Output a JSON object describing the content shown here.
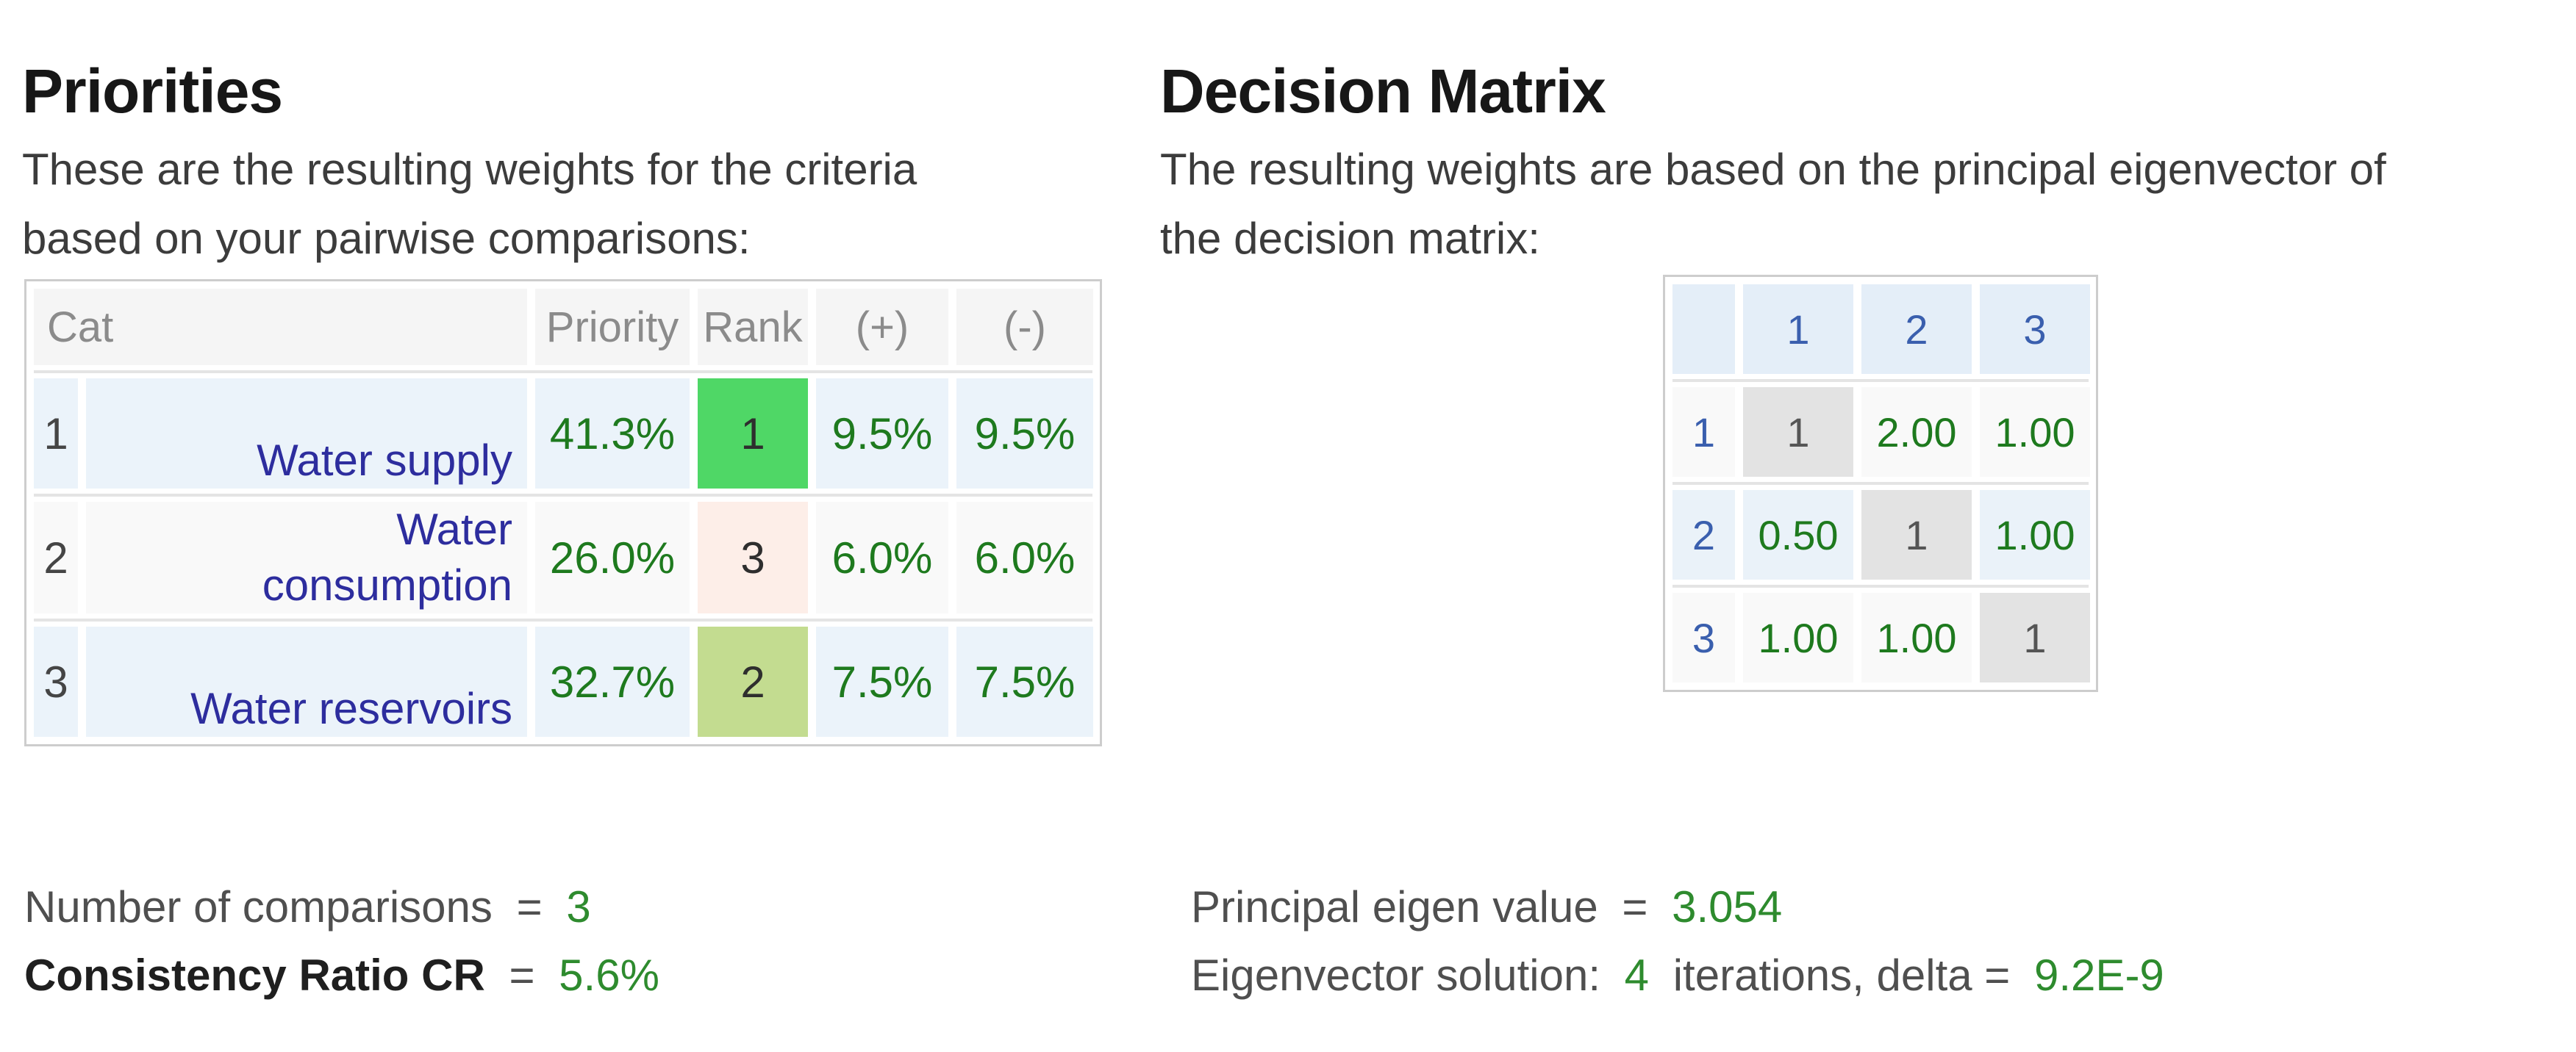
{
  "colors": {
    "accent_green_values": "#1e7a1e",
    "accent_green_stats": "#2e8b2e",
    "category_link_blue": "#2d2d9e",
    "matrix_index_blue": "#3a5fae",
    "rank_1_bg": "#4fd766",
    "rank_2_bg": "#c3dc90",
    "rank_3_bg": "#fdeee8",
    "diagonal_bg": "#e3e3e3",
    "row_blue_bg": "#ebf3fa",
    "header_gray_text": "#8b8b8b"
  },
  "left": {
    "title": "Priorities",
    "intro_lines": [
      "These are the resulting weights for the criteria",
      "based on your pairwise comparisons:"
    ],
    "table": {
      "headers": {
        "cat": "Cat",
        "priority": "Priority",
        "rank": "Rank",
        "plus": "(+)",
        "minus": "(-)"
      },
      "rows": [
        {
          "index": "1",
          "name": "Water supply",
          "priority": "41.3%",
          "rank": "1",
          "plus": "9.5%",
          "minus": "9.5%"
        },
        {
          "index": "2",
          "name": "Water",
          "name_line2": "consumption",
          "priority": "26.0%",
          "rank": "3",
          "plus": "6.0%",
          "minus": "6.0%"
        },
        {
          "index": "3",
          "name": "Water reservoirs",
          "priority": "32.7%",
          "rank": "2",
          "plus": "7.5%",
          "minus": "7.5%"
        }
      ]
    },
    "stats": {
      "comparisons_label": "Number of comparisons",
      "comparisons_eq": "=",
      "comparisons_value": "3",
      "cr_label": "Consistency Ratio CR",
      "cr_eq": "=",
      "cr_value": "5.6%"
    }
  },
  "right": {
    "title": "Decision Matrix",
    "intro_lines": [
      "The resulting weights are based on the principal eigenvector of",
      "the decision matrix:"
    ],
    "matrix": {
      "col_headers": [
        "1",
        "2",
        "3"
      ],
      "rows": [
        {
          "label": "1",
          "cells": [
            "1",
            "2.00",
            "1.00"
          ]
        },
        {
          "label": "2",
          "cells": [
            "0.50",
            "1",
            "1.00"
          ]
        },
        {
          "label": "3",
          "cells": [
            "1.00",
            "1.00",
            "1"
          ]
        }
      ]
    },
    "stats": {
      "eigen_label": "Principal eigen value",
      "eigen_eq": "=",
      "eigen_value": "3.054",
      "solution_label": "Eigenvector solution:",
      "iterations_value": "4",
      "iterations_text": "iterations, delta =",
      "delta_value": "9.2E-9"
    }
  }
}
